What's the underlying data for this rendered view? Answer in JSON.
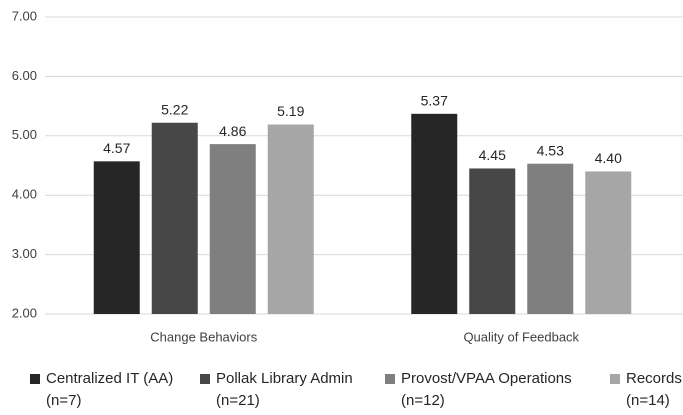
{
  "chart_data": {
    "type": "bar",
    "categories": [
      "Change Behaviors",
      "Quality of Feedback"
    ],
    "series": [
      {
        "name": "Centralized IT (AA)\n(n=7)",
        "color": "#262626",
        "values": [
          4.57,
          5.37
        ],
        "value_labels": [
          "4.57",
          "5.37"
        ]
      },
      {
        "name": "Pollak Library Admin\n(n=21)",
        "color": "#474747",
        "values": [
          5.22,
          4.45
        ],
        "value_labels": [
          "5.22",
          "4.45"
        ]
      },
      {
        "name": "Provost/VPAA Operations\n(n=12)",
        "color": "#7f7f7f",
        "values": [
          4.86,
          4.53
        ],
        "value_labels": [
          "4.86",
          "4.53"
        ]
      },
      {
        "name": "Records\n(n=14)",
        "color": "#a6a6a6",
        "values": [
          5.19,
          4.4
        ],
        "value_labels": [
          "5.19",
          "4.40"
        ]
      }
    ],
    "ylim": [
      2,
      7
    ],
    "yticks": [
      {
        "value": 2,
        "label": "2.00"
      },
      {
        "value": 3,
        "label": "3.00"
      },
      {
        "value": 4,
        "label": "4.00"
      },
      {
        "value": 5,
        "label": "5.00"
      },
      {
        "value": 6,
        "label": "6.00"
      },
      {
        "value": 7,
        "label": "7.00"
      }
    ],
    "grid": true,
    "legend": "bottom"
  }
}
